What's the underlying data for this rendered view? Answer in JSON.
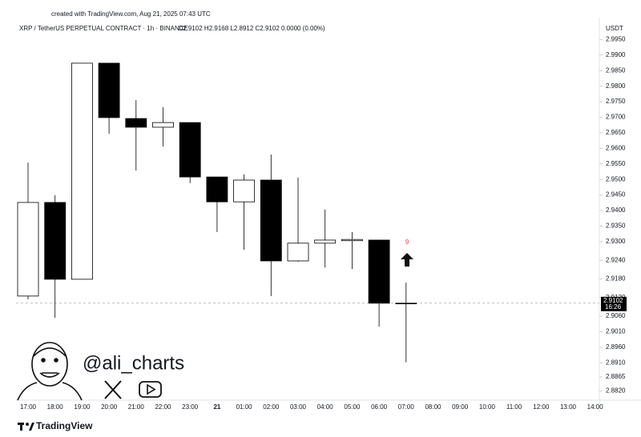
{
  "chart_data": {
    "type": "candlestick",
    "credit": "created with TradingView.com, Aug 21, 2025 07:43 UTC",
    "symbol": "XRP / TetherUS PERPETUAL CONTRACT · 1h · BINANCE",
    "ohlc_header": "O2.9102 H2.9168 L2.8912 C2.9102 0.0000 (0.00%)",
    "y_axis_label": "USDT",
    "categories": [
      "17:00",
      "18:00",
      "19:00",
      "20:00",
      "21:00",
      "22:00",
      "23:00",
      "21",
      "01:00",
      "02:00",
      "03:00",
      "04:00",
      "05:00",
      "06:00",
      "07:00",
      "08:00",
      "09:00",
      "10:00",
      "11:00",
      "12:00",
      "13:00",
      "14:00"
    ],
    "open": [
      2.9125,
      2.9426,
      2.9179,
      2.9874,
      2.9696,
      2.9668,
      2.9683,
      2.9508,
      2.9428,
      2.9498,
      2.9238,
      2.9295,
      2.9303,
      2.9305,
      2.9102,
      null,
      null,
      null,
      null,
      null,
      null,
      null
    ],
    "high": [
      2.9554,
      2.9449,
      2.9874,
      2.9874,
      2.9755,
      2.9732,
      2.9683,
      2.9508,
      2.9516,
      2.958,
      2.9506,
      2.9403,
      2.9331,
      2.9305,
      2.9168,
      null,
      null,
      null,
      null,
      null,
      null,
      null
    ],
    "low": [
      2.9114,
      2.9055,
      2.9179,
      2.9647,
      2.9529,
      2.9606,
      2.9488,
      2.9331,
      2.9274,
      2.9125,
      2.9235,
      2.9217,
      2.9212,
      2.9027,
      2.8912,
      null,
      null,
      null,
      null,
      null,
      null,
      null
    ],
    "close": [
      2.9426,
      2.9179,
      2.9874,
      2.9699,
      2.9668,
      2.9683,
      2.9508,
      2.9428,
      2.9498,
      2.9238,
      2.9295,
      2.9305,
      2.9307,
      2.9102,
      2.9102,
      null,
      null,
      null,
      null,
      null,
      null,
      null
    ],
    "up_color": "#ffffff",
    "down_color": "#000000",
    "outline_color": "#000000",
    "last_price": 2.9102,
    "countdown": "16:26",
    "annotation": "9",
    "watermark": "@ali_charts",
    "brand": "TradingView",
    "ylim": [
      2.879,
      3.0
    ],
    "yticks": [
      {
        "value": 2.995,
        "label": "2.9950"
      },
      {
        "value": 2.99,
        "label": "2.9900"
      },
      {
        "value": 2.985,
        "label": "2.9850"
      },
      {
        "value": 2.98,
        "label": "2.9800"
      },
      {
        "value": 2.975,
        "label": "2.9750"
      },
      {
        "value": 2.97,
        "label": "2.9700"
      },
      {
        "value": 2.965,
        "label": "2.9650"
      },
      {
        "value": 2.96,
        "label": "2.9600"
      },
      {
        "value": 2.955,
        "label": "2.9550"
      },
      {
        "value": 2.95,
        "label": "2.9500"
      },
      {
        "value": 2.945,
        "label": "2.9450"
      },
      {
        "value": 2.94,
        "label": "2.9400"
      },
      {
        "value": 2.935,
        "label": "2.9350"
      },
      {
        "value": 2.93,
        "label": "2.9300"
      },
      {
        "value": 2.924,
        "label": "2.9240"
      },
      {
        "value": 2.918,
        "label": "2.9180"
      },
      {
        "value": 2.912,
        "label": "2.9120"
      },
      {
        "value": 2.906,
        "label": "2.9060"
      },
      {
        "value": 2.901,
        "label": "2.9010"
      },
      {
        "value": 2.896,
        "label": "2.8960"
      },
      {
        "value": 2.891,
        "label": "2.8910"
      },
      {
        "value": 2.8865,
        "label": "2.8865"
      },
      {
        "value": 2.882,
        "label": "2.8820"
      }
    ],
    "grid": false
  }
}
